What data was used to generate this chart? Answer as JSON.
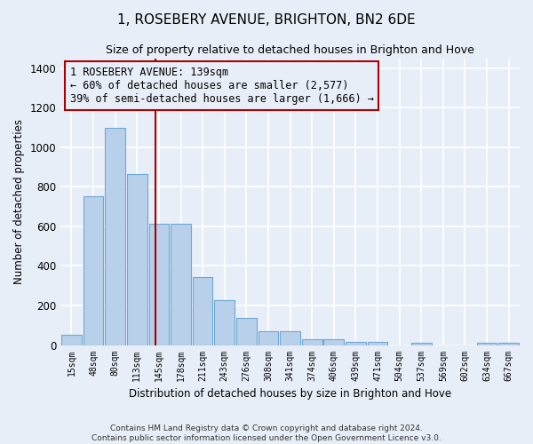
{
  "title": "1, ROSEBERY AVENUE, BRIGHTON, BN2 6DE",
  "subtitle": "Size of property relative to detached houses in Brighton and Hove",
  "xlabel": "Distribution of detached houses by size in Brighton and Hove",
  "ylabel": "Number of detached properties",
  "footer_line1": "Contains HM Land Registry data © Crown copyright and database right 2024.",
  "footer_line2": "Contains public sector information licensed under the Open Government Licence v3.0.",
  "bar_labels": [
    "15sqm",
    "48sqm",
    "80sqm",
    "113sqm",
    "145sqm",
    "178sqm",
    "211sqm",
    "243sqm",
    "276sqm",
    "308sqm",
    "341sqm",
    "374sqm",
    "406sqm",
    "439sqm",
    "471sqm",
    "504sqm",
    "537sqm",
    "569sqm",
    "602sqm",
    "634sqm",
    "667sqm"
  ],
  "bar_values": [
    50,
    750,
    1100,
    865,
    615,
    615,
    345,
    225,
    135,
    70,
    70,
    30,
    30,
    15,
    15,
    0,
    10,
    0,
    0,
    10,
    10
  ],
  "bar_color": "#b8d0ea",
  "bar_edge_color": "#6fa8d4",
  "annotation_line1": "1 ROSEBERY AVENUE: 139sqm",
  "annotation_line2": "← 60% of detached houses are smaller (2,577)",
  "annotation_line3": "39% of semi-detached houses are larger (1,666) →",
  "red_line_color": "#aa0000",
  "ylim": [
    0,
    1450
  ],
  "yticks": [
    0,
    200,
    400,
    600,
    800,
    1000,
    1200,
    1400
  ],
  "background_color": "#e8eef8",
  "grid_color": "#ffffff",
  "title_fontsize": 11,
  "subtitle_fontsize": 9
}
